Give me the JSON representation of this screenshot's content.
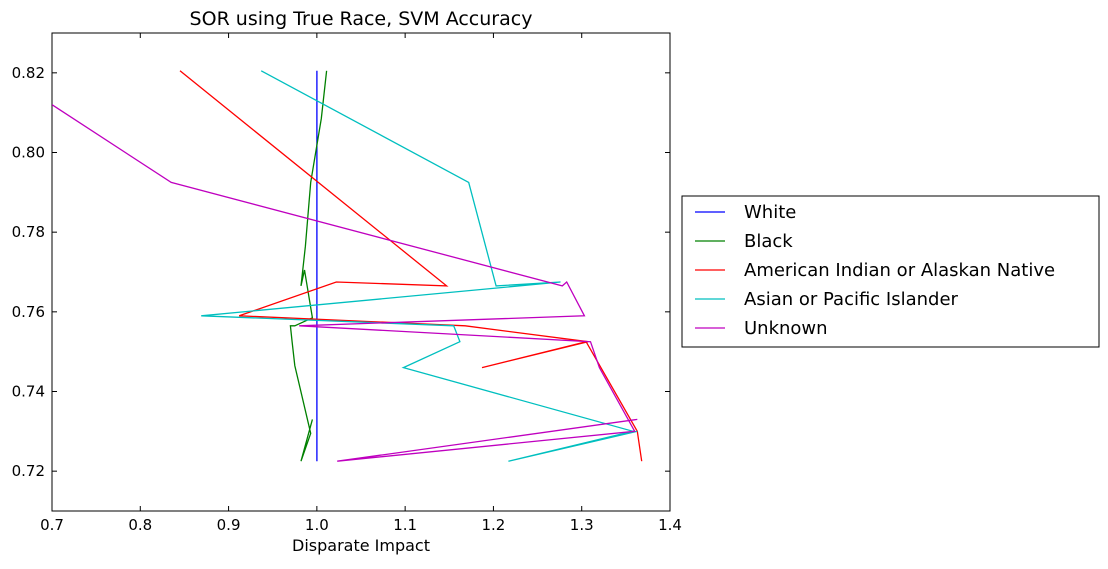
{
  "chart_data": {
    "type": "line",
    "title": "SOR using True Race, SVM Accuracy",
    "xlabel": "Disparate Impact",
    "ylabel": "",
    "xlim": [
      0.7,
      1.4
    ],
    "ylim": [
      0.71,
      0.83
    ],
    "xticks": [
      "0.7",
      "0.8",
      "0.9",
      "1.0",
      "1.1",
      "1.2",
      "1.3",
      "1.4"
    ],
    "yticks": [
      "0.72",
      "0.74",
      "0.76",
      "0.78",
      "0.80",
      "0.82"
    ],
    "grid": false,
    "legend_placement": "outside-right",
    "series": [
      {
        "name": "White",
        "color": "#0000ff",
        "points": [
          [
            1.0,
            0.8205
          ],
          [
            1.0,
            0.7225
          ]
        ]
      },
      {
        "name": "Black",
        "color": "#008000",
        "points": [
          [
            1.011,
            0.8205
          ],
          [
            1.005,
            0.8085
          ],
          [
            0.993,
            0.7925
          ],
          [
            0.987,
            0.7765
          ],
          [
            0.982,
            0.7665
          ],
          [
            0.986,
            0.7705
          ],
          [
            0.995,
            0.7585
          ],
          [
            0.975,
            0.7565
          ],
          [
            0.97,
            0.7565
          ],
          [
            0.972,
            0.7525
          ],
          [
            0.975,
            0.7465
          ],
          [
            0.993,
            0.7295
          ],
          [
            0.982,
            0.7225
          ],
          [
            0.995,
            0.733
          ]
        ]
      },
      {
        "name": "American Indian or Alaskan Native",
        "color": "#ff0000",
        "points": [
          [
            0.845,
            0.8205
          ],
          [
            1.147,
            0.7665
          ],
          [
            1.022,
            0.7675
          ],
          [
            0.912,
            0.759
          ],
          [
            1.168,
            0.7565
          ],
          [
            1.307,
            0.7525
          ],
          [
            1.187,
            0.746
          ],
          [
            1.305,
            0.7525
          ],
          [
            1.363,
            0.73
          ],
          [
            1.368,
            0.7225
          ]
        ]
      },
      {
        "name": "Asian or Pacific Islander",
        "color": "#00bfbf",
        "points": [
          [
            0.937,
            0.8205
          ],
          [
            1.172,
            0.7925
          ],
          [
            1.203,
            0.7665
          ],
          [
            1.276,
            0.7675
          ],
          [
            0.869,
            0.759
          ],
          [
            1.155,
            0.7565
          ],
          [
            1.162,
            0.7525
          ],
          [
            1.098,
            0.746
          ],
          [
            1.358,
            0.73
          ],
          [
            1.217,
            0.7225
          ],
          [
            1.363,
            0.73
          ]
        ]
      },
      {
        "name": "Unknown",
        "color": "#bf00bf",
        "points": [
          [
            0.7,
            0.812
          ],
          [
            0.835,
            0.7925
          ],
          [
            1.278,
            0.7665
          ],
          [
            1.283,
            0.7675
          ],
          [
            1.303,
            0.759
          ],
          [
            0.98,
            0.7565
          ],
          [
            1.31,
            0.7525
          ],
          [
            1.32,
            0.746
          ],
          [
            1.36,
            0.73
          ],
          [
            1.023,
            0.7225
          ],
          [
            1.363,
            0.733
          ]
        ]
      }
    ]
  }
}
